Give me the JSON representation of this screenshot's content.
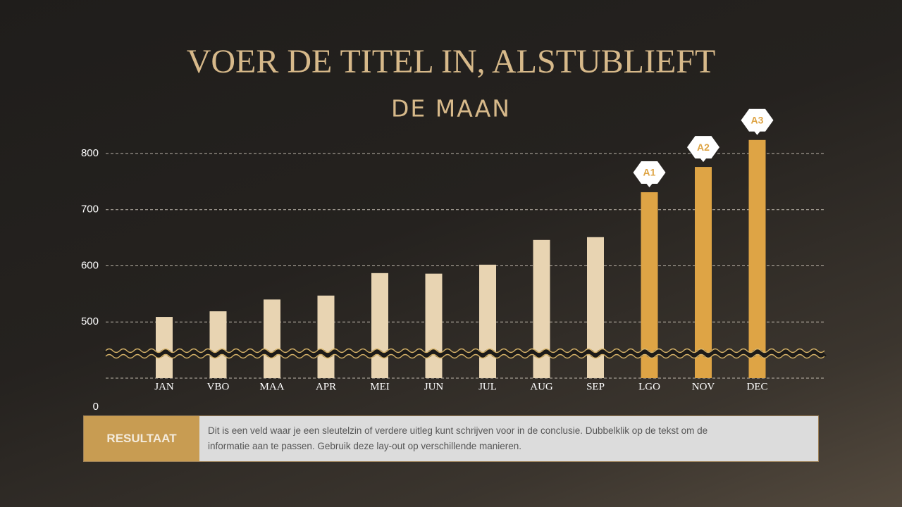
{
  "chart_data": {
    "type": "bar",
    "title": "VOER DE TITEL IN, ALSTUBLIEFT",
    "subtitle": "DE MAAN",
    "categories": [
      "JAN",
      "VBO",
      "MAA",
      "APR",
      "MEI",
      "JUN",
      "JUL",
      "AUG",
      "SEP",
      "LGO",
      "NOV",
      "DEC"
    ],
    "values": [
      509,
      519,
      540,
      547,
      587,
      586,
      602,
      646,
      651,
      731,
      776,
      824
    ],
    "colors": [
      "#e8d4b2",
      "#e8d4b2",
      "#e8d4b2",
      "#e8d4b2",
      "#e8d4b2",
      "#e8d4b2",
      "#e8d4b2",
      "#e8d4b2",
      "#e8d4b2",
      "#dea445",
      "#dea445",
      "#dea445"
    ],
    "annotations": [
      null,
      null,
      null,
      null,
      null,
      null,
      null,
      null,
      null,
      "A1",
      "A2",
      "A3"
    ],
    "ylim": [
      400,
      825
    ],
    "yticks": [
      0,
      500,
      600,
      700,
      800
    ],
    "axis_break": true,
    "grid": true
  },
  "conclusion": {
    "label": "RESULTAAT",
    "text": "Dit is een veld waar je een sleutelzin of verdere uitleg kunt schrijven voor in de conclusie. Dubbelklik op de tekst om de informatie aan te passen. Gebruik deze lay-out op verschillende manieren."
  }
}
